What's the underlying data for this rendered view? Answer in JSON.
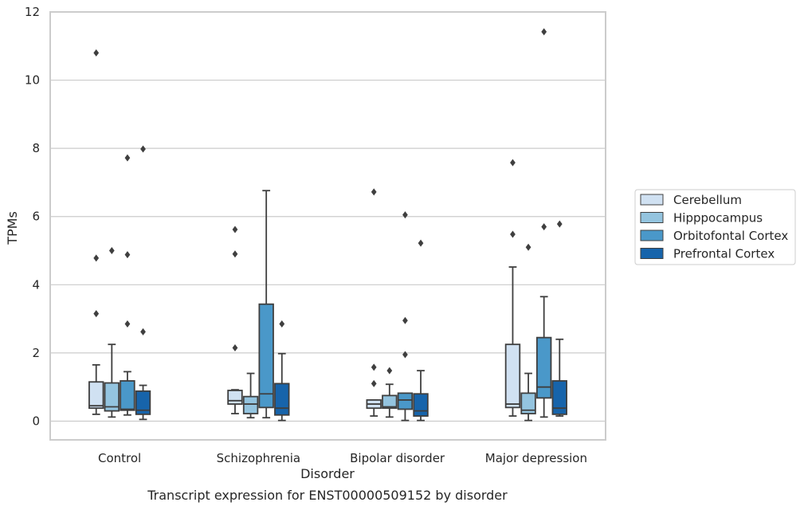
{
  "chart_data": {
    "type": "box",
    "title": "Transcript expression for ENST00000509152 by disorder",
    "xlabel": "Disorder",
    "ylabel": "TPMs",
    "ylim": [
      -0.55,
      12
    ],
    "yticks": [
      0,
      2,
      4,
      6,
      8,
      10,
      12
    ],
    "grid": true,
    "legend_position": "right",
    "categories": [
      "Control",
      "Schizophrenia",
      "Bipolar disorder",
      "Major depression"
    ],
    "series": [
      {
        "name": "Cerebellum",
        "color": "#d0e1f2",
        "boxes": [
          {
            "whisker_low": 0.2,
            "q1": 0.38,
            "median": 0.45,
            "q3": 1.15,
            "whisker_high": 1.65,
            "outliers": [
              3.15,
              4.78,
              10.8
            ]
          },
          {
            "whisker_low": 0.22,
            "q1": 0.5,
            "median": 0.6,
            "q3": 0.9,
            "whisker_high": 0.92,
            "outliers": [
              2.15,
              4.9,
              5.62
            ]
          },
          {
            "whisker_low": 0.15,
            "q1": 0.38,
            "median": 0.5,
            "q3": 0.62,
            "whisker_high": 0.62,
            "outliers": [
              1.1,
              1.58,
              6.72
            ]
          },
          {
            "whisker_low": 0.15,
            "q1": 0.4,
            "median": 0.5,
            "q3": 2.25,
            "whisker_high": 4.52,
            "outliers": [
              5.48,
              7.58
            ]
          }
        ]
      },
      {
        "name": "Hipppocampus",
        "color": "#94c4df",
        "boxes": [
          {
            "whisker_low": 0.12,
            "q1": 0.3,
            "median": 0.42,
            "q3": 1.12,
            "whisker_high": 2.25,
            "outliers": [
              5.0
            ]
          },
          {
            "whisker_low": 0.1,
            "q1": 0.22,
            "median": 0.5,
            "q3": 0.72,
            "whisker_high": 1.4,
            "outliers": []
          },
          {
            "whisker_low": 0.12,
            "q1": 0.38,
            "median": 0.42,
            "q3": 0.75,
            "whisker_high": 1.08,
            "outliers": [
              1.48
            ]
          },
          {
            "whisker_low": 0.02,
            "q1": 0.22,
            "median": 0.32,
            "q3": 0.82,
            "whisker_high": 1.4,
            "outliers": [
              5.1
            ]
          }
        ]
      },
      {
        "name": "Orbitofontal Cortex",
        "color": "#4a98c9",
        "boxes": [
          {
            "whisker_low": 0.18,
            "q1": 0.32,
            "median": 0.35,
            "q3": 1.18,
            "whisker_high": 1.45,
            "outliers": [
              2.85,
              4.88,
              7.72
            ]
          },
          {
            "whisker_low": 0.1,
            "q1": 0.4,
            "median": 0.8,
            "q3": 3.43,
            "whisker_high": 6.76,
            "outliers": []
          },
          {
            "whisker_low": 0.02,
            "q1": 0.35,
            "median": 0.62,
            "q3": 0.82,
            "whisker_high": 0.82,
            "outliers": [
              1.95,
              2.95,
              6.05
            ]
          },
          {
            "whisker_low": 0.12,
            "q1": 0.68,
            "median": 1.0,
            "q3": 2.45,
            "whisker_high": 3.65,
            "outliers": [
              5.7,
              11.42
            ]
          }
        ]
      },
      {
        "name": "Prefrontal Cortex",
        "color": "#1764ab",
        "boxes": [
          {
            "whisker_low": 0.05,
            "q1": 0.2,
            "median": 0.32,
            "q3": 0.88,
            "whisker_high": 1.05,
            "outliers": [
              2.62,
              7.98
            ]
          },
          {
            "whisker_low": 0.02,
            "q1": 0.18,
            "median": 0.38,
            "q3": 1.1,
            "whisker_high": 1.98,
            "outliers": [
              2.85
            ]
          },
          {
            "whisker_low": 0.02,
            "q1": 0.15,
            "median": 0.3,
            "q3": 0.8,
            "whisker_high": 1.48,
            "outliers": [
              5.22
            ]
          },
          {
            "whisker_low": 0.15,
            "q1": 0.2,
            "median": 0.38,
            "q3": 1.18,
            "whisker_high": 2.4,
            "outliers": [
              5.78
            ]
          }
        ]
      }
    ]
  }
}
